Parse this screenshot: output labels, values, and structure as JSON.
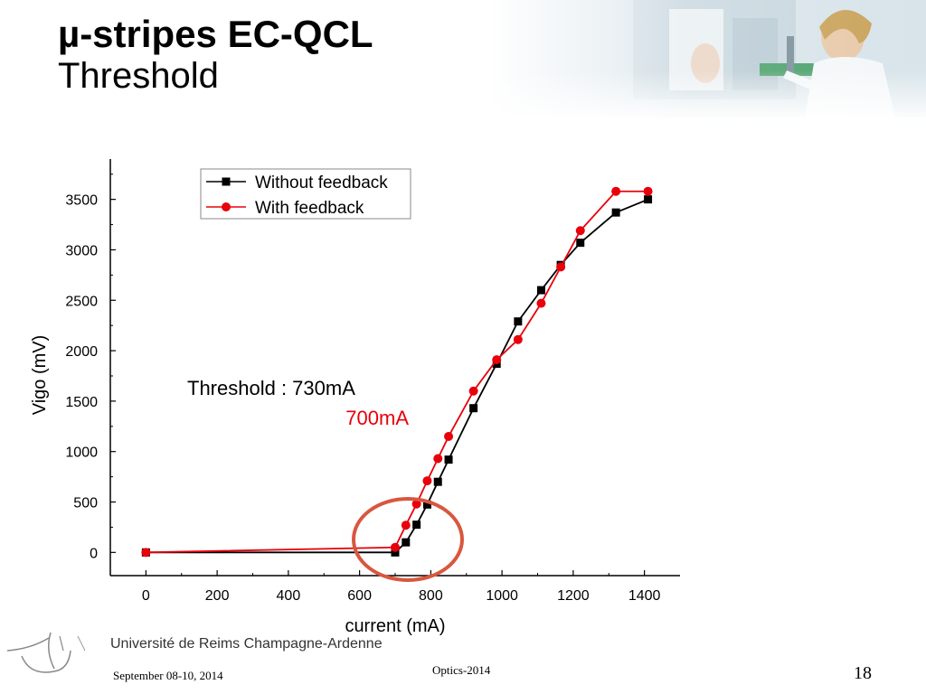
{
  "slide": {
    "title": "µ-stripes EC-QCL",
    "subtitle": "Threshold",
    "footer_date": "September 08-10, 2014",
    "footer_center": "Optics-2014",
    "page_number": "18",
    "university": "Université de Reims Champagne-Ardenne"
  },
  "annotations": {
    "threshold_black": "Threshold : 730mA",
    "threshold_red": "700mA"
  },
  "colors": {
    "without_feedback": "#000000",
    "with_feedback": "#e8000b",
    "highlight_circle": "#d9573f",
    "annotation_red": "#e8000b"
  },
  "chart_data": {
    "type": "line",
    "xlabel": "current (mA)",
    "ylabel": "Vigo (mV)",
    "xlim": [
      -100,
      1500
    ],
    "ylim": [
      -230,
      3900
    ],
    "xticks": [
      0,
      200,
      400,
      600,
      800,
      1000,
      1200,
      1400
    ],
    "yticks": [
      0,
      500,
      1000,
      1500,
      2000,
      2500,
      3000,
      3500
    ],
    "legend_position": "top-left",
    "grid": false,
    "series": [
      {
        "name": "Without feedback",
        "marker": "square",
        "x": [
          0,
          700,
          730,
          760,
          790,
          820,
          850,
          920,
          985,
          1045,
          1110,
          1165,
          1220,
          1320,
          1410
        ],
        "y": [
          0,
          0,
          100,
          275,
          475,
          700,
          920,
          1430,
          1870,
          2290,
          2600,
          2850,
          3070,
          3370,
          3500
        ]
      },
      {
        "name": "With feedback",
        "marker": "circle",
        "x": [
          0,
          700,
          730,
          760,
          790,
          820,
          850,
          920,
          985,
          1045,
          1110,
          1165,
          1220,
          1320,
          1410
        ],
        "y": [
          0,
          50,
          270,
          480,
          710,
          930,
          1150,
          1600,
          1910,
          2110,
          2470,
          2830,
          3190,
          3580,
          3580
        ]
      }
    ]
  }
}
